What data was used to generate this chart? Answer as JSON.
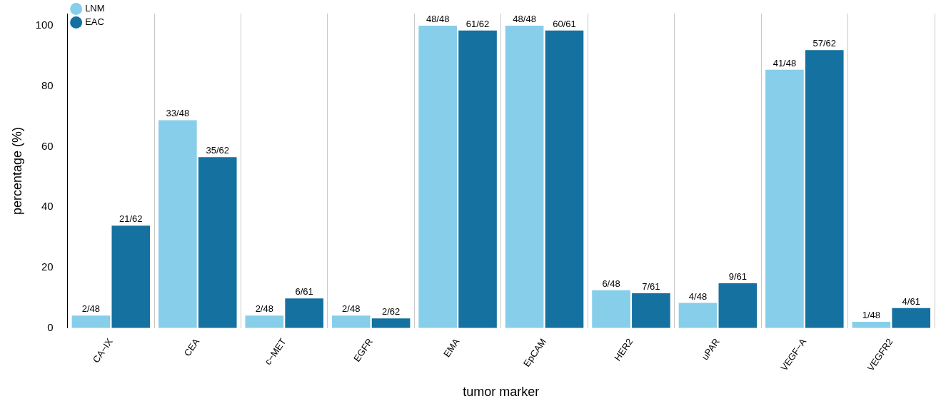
{
  "chart_data": {
    "type": "bar",
    "xlabel": "tumor marker",
    "ylabel": "percentage (%)",
    "categories": [
      "CA−IX",
      "CEA",
      "c−MET",
      "EGFR",
      "EMA",
      "EpCAM",
      "HER2",
      "uPAR",
      "VEGF−A",
      "VEGFR2"
    ],
    "series": [
      {
        "name": "LNM",
        "color": "#87ceeb",
        "values": [
          4.17,
          68.75,
          4.17,
          4.17,
          100,
          100,
          12.5,
          8.33,
          85.4,
          2.08
        ],
        "value_labels": [
          "2/48",
          "33/48",
          "2/48",
          "2/48",
          "48/48",
          "48/48",
          "6/48",
          "4/48",
          "41/48",
          "1/48"
        ]
      },
      {
        "name": "EAC",
        "color": "#1471a0",
        "values": [
          33.9,
          56.5,
          9.8,
          3.2,
          98.4,
          98.4,
          11.5,
          14.8,
          91.9,
          6.6
        ],
        "value_labels": [
          "21/62",
          "35/62",
          "6/61",
          "2/62",
          "61/62",
          "60/61",
          "7/61",
          "9/61",
          "57/62",
          "4/61"
        ]
      }
    ],
    "ylim": [
      0,
      104
    ],
    "yticks": [
      0,
      20,
      40,
      60,
      80,
      100
    ],
    "grid": "x",
    "legend": "top left"
  }
}
